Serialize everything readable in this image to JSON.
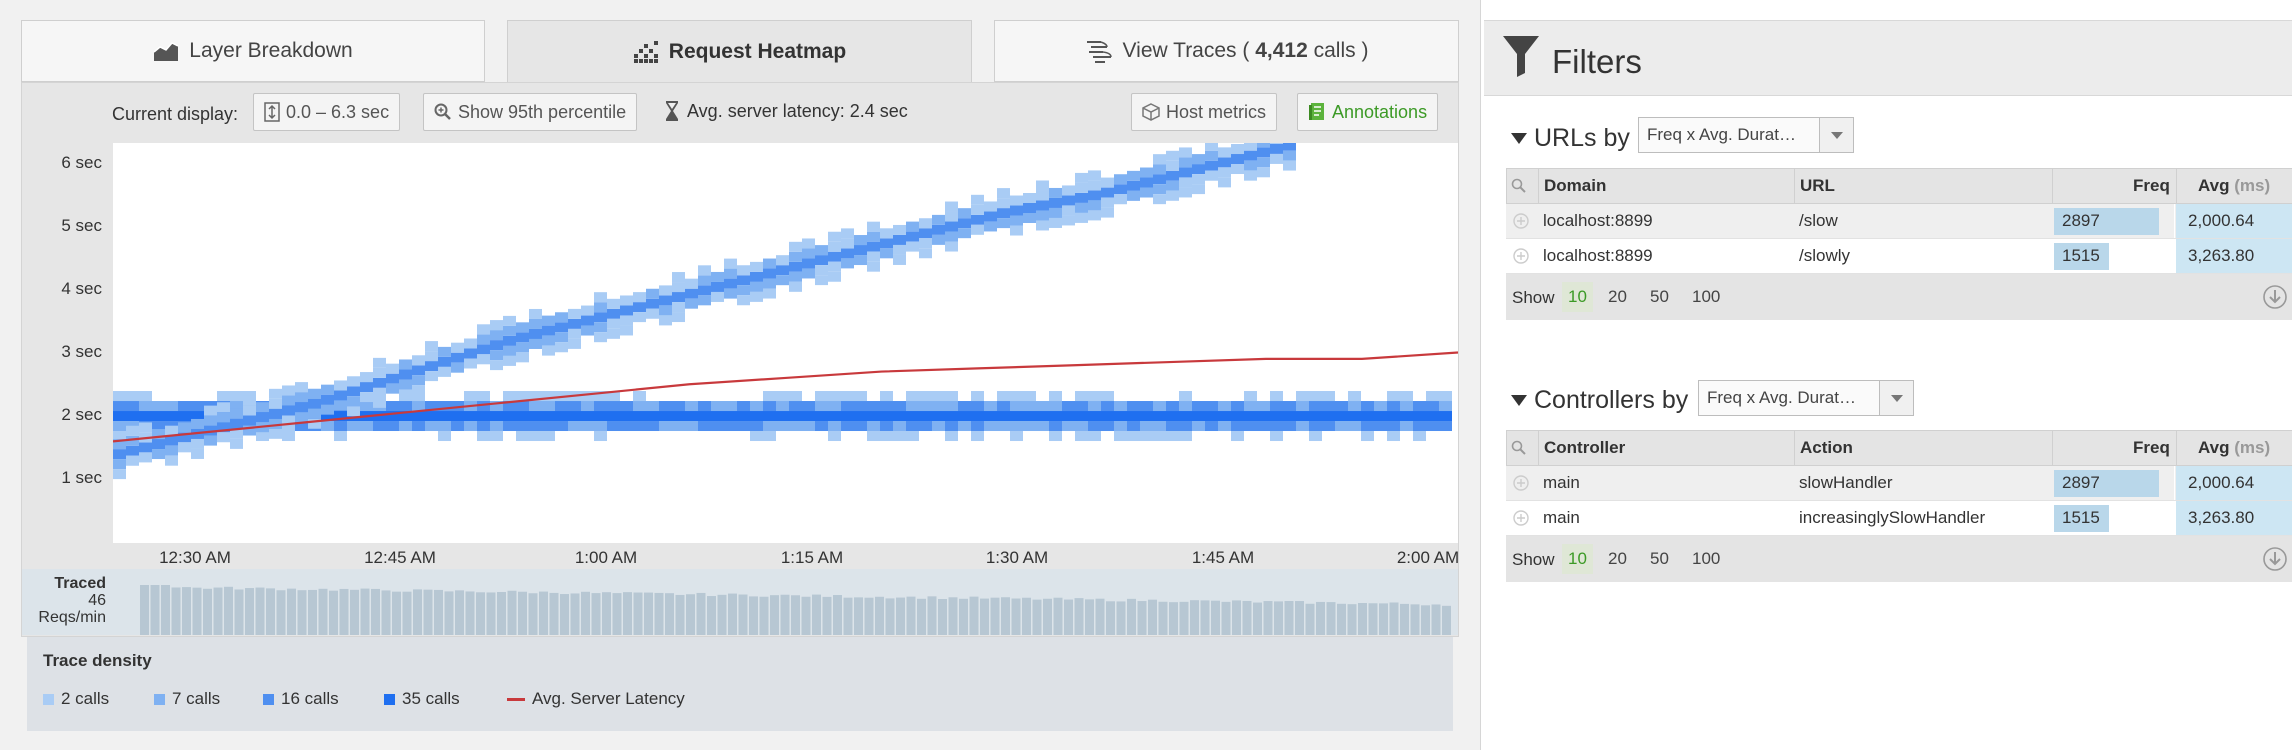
{
  "tabs": {
    "layer_breakdown": "Layer Breakdown",
    "request_heatmap": "Request Heatmap",
    "view_traces_prefix": "View Traces ( ",
    "view_traces_count": "4,412",
    "view_traces_suffix": " calls )"
  },
  "toolbar": {
    "current_display_label": "Current display:",
    "range_button": "0.0 – 6.3 sec",
    "percentile_button": "Show 95th percentile",
    "avg_latency": "Avg. server latency: 2.4 sec",
    "host_metrics_button": "Host metrics",
    "annotations_button": "Annotations"
  },
  "traced": {
    "title": "Traced",
    "value": "46",
    "unit": "Reqs/min"
  },
  "legend": {
    "title": "Trace density",
    "items": [
      {
        "label": "2 calls",
        "color": "#a9ccf5"
      },
      {
        "label": "7 calls",
        "color": "#7fb1f2"
      },
      {
        "label": "16 calls",
        "color": "#4f8ff0"
      },
      {
        "label": "35 calls",
        "color": "#1f6ff0"
      }
    ],
    "latency_label": "Avg. Server Latency",
    "latency_color": "#c8393c"
  },
  "chart_data": {
    "type": "heatmap",
    "y_ticks": [
      "6 sec",
      "5 sec",
      "4 sec",
      "3 sec",
      "2 sec",
      "1 sec"
    ],
    "y_range": [
      0,
      6.3
    ],
    "x_ticks": [
      "12:30 AM",
      "12:45 AM",
      "1:00 AM",
      "1:15 AM",
      "1:30 AM",
      "1:45 AM",
      "2:00 AM"
    ],
    "series": [
      {
        "name": "Avg. Server Latency",
        "values": [
          1.6,
          1.75,
          1.9,
          2.05,
          2.2,
          2.35,
          2.5,
          2.6,
          2.7,
          2.75,
          2.8,
          2.85,
          2.9,
          2.9,
          3.0
        ]
      },
      {
        "name": "slow",
        "values": [
          2.0,
          2.0,
          2.0,
          2.0,
          2.0,
          2.0,
          2.0,
          2.0,
          2.0,
          2.0,
          2.0,
          2.0,
          2.0,
          2.0,
          2.0
        ]
      },
      {
        "name": "slowly",
        "values": [
          1.4,
          1.8,
          2.2,
          2.7,
          3.2,
          3.6,
          4.0,
          4.4,
          4.8,
          5.2,
          5.5,
          5.9,
          6.3
        ]
      }
    ]
  },
  "filters": {
    "title": "Filters",
    "urls": {
      "title": "URLs by",
      "sort": "Freq x Avg. Durat…",
      "columns": [
        "Domain",
        "URL",
        "Freq",
        "Avg",
        "(ms)"
      ],
      "rows": [
        {
          "domain": "localhost:8899",
          "url": "/slow",
          "freq": "2897",
          "avg": "2,000.64",
          "freq_fraction": 1.0
        },
        {
          "domain": "localhost:8899",
          "url": "/slowly",
          "freq": "1515",
          "avg": "3,263.80",
          "freq_fraction": 0.52
        }
      ],
      "show_label": "Show",
      "page_sizes": [
        "10",
        "20",
        "50",
        "100"
      ]
    },
    "controllers": {
      "title": "Controllers by",
      "sort": "Freq x Avg. Durat…",
      "columns": [
        "Controller",
        "Action",
        "Freq",
        "Avg",
        "(ms)"
      ],
      "rows": [
        {
          "controller": "main",
          "action": "slowHandler",
          "freq": "2897",
          "avg": "2,000.64",
          "freq_fraction": 1.0
        },
        {
          "controller": "main",
          "action": "increasinglySlowHandler",
          "freq": "1515",
          "avg": "3,263.80",
          "freq_fraction": 0.52
        }
      ],
      "show_label": "Show",
      "page_sizes": [
        "10",
        "20",
        "50",
        "100"
      ]
    }
  }
}
